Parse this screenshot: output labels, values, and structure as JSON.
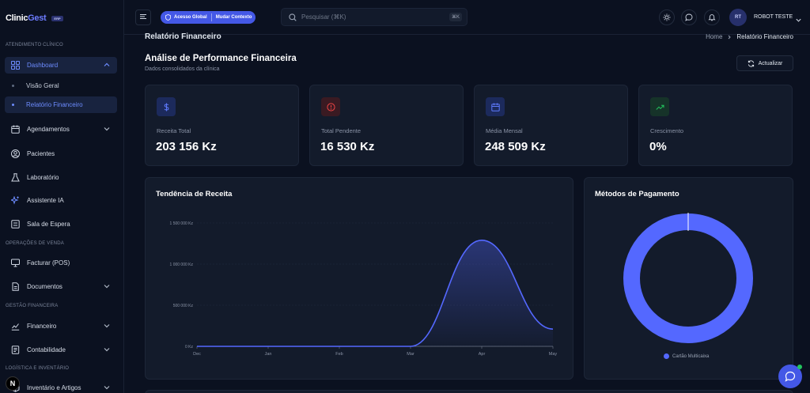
{
  "app": {
    "logo_part1": "Clinic",
    "logo_part2": "Gest",
    "logo_badge": "ERP"
  },
  "sidebar": {
    "sections": [
      {
        "label": "ATENDIMENTO CLÍNICO"
      },
      {
        "label": "OPERAÇÕES DE VENDA"
      },
      {
        "label": "GESTÃO FINANCEIRA"
      },
      {
        "label": "LOGÍSTICA E INVENTÁRIO"
      }
    ],
    "items": [
      {
        "label": "Dashboard",
        "icon": "grid-icon"
      },
      {
        "label": "Agendamentos",
        "icon": "calendar-icon"
      },
      {
        "label": "Pacientes",
        "icon": "user-circle-icon"
      },
      {
        "label": "Laboratório",
        "icon": "flask-icon"
      },
      {
        "label": "Assistente IA",
        "icon": "sparkle-icon"
      },
      {
        "label": "Sala de Espera",
        "icon": "list-icon"
      },
      {
        "label": "Facturar (POS)",
        "icon": "monitor-icon"
      },
      {
        "label": "Documentos",
        "icon": "document-icon"
      },
      {
        "label": "Financeiro",
        "icon": "chart-icon"
      },
      {
        "label": "Contabilidade",
        "icon": "ledger-icon"
      },
      {
        "label": "Inventário e Artigos",
        "icon": "box-icon"
      }
    ],
    "subitems": [
      {
        "label": "Visão Geral"
      },
      {
        "label": "Relatório Financeiro"
      }
    ],
    "n_badge": "N"
  },
  "topbar": {
    "ctx_global": "Acesso Global",
    "ctx_change": "Mudar Contexto",
    "search_placeholder": "Pesquisar (⌘K)",
    "search_kbd": "⌘K",
    "user_initials": "RT",
    "user_name": "ROBOT TESTE"
  },
  "page": {
    "title": "Relatório Financeiro",
    "breadcrumb": [
      "Home",
      "Relatório Financeiro"
    ],
    "heading": "Análise de Performance Financeira",
    "subheading": "Dados consolidados da clínica",
    "refresh_label": "Actualizar"
  },
  "cards": [
    {
      "label": "Receita Total",
      "value": "203 156 Kz",
      "icon": "dollar-icon",
      "color": "#4f6bff"
    },
    {
      "label": "Total Pendente",
      "value": "16 530 Kz",
      "icon": "alert-icon",
      "color": "#ef4444"
    },
    {
      "label": "Média Mensal",
      "value": "248 509 Kz",
      "icon": "calendar-icon",
      "color": "#4f6bff"
    },
    {
      "label": "Crescimento",
      "value": "0%",
      "icon": "trend-up-icon",
      "color": "#22c55e"
    }
  ],
  "panels": {
    "revenue_title": "Tendência de Receita",
    "payment_title": "Métodos de Pagamento"
  },
  "chart_data": [
    {
      "type": "area",
      "title": "Tendência de Receita",
      "categories": [
        "Dec",
        "Jan",
        "Feb",
        "Mar",
        "Apr",
        "May"
      ],
      "y_tick_labels": [
        "0 Kz",
        "500 000 Kz",
        "1 000 000 Kz",
        "1 500 000 Kz"
      ],
      "y_ticks": [
        0,
        500000,
        1000000,
        1500000
      ],
      "series": [
        {
          "values": [
            0,
            0,
            0,
            0,
            1290000,
            210000
          ]
        }
      ],
      "ylim": [
        0,
        1500000
      ],
      "grid": true,
      "color": "#5468ff"
    },
    {
      "type": "pie",
      "title": "Métodos de Pagamento",
      "series": [
        {
          "name": "Cartão Multicaixa",
          "values": [
            100
          ]
        }
      ],
      "legend": "bottom",
      "color": "#5468ff"
    }
  ]
}
